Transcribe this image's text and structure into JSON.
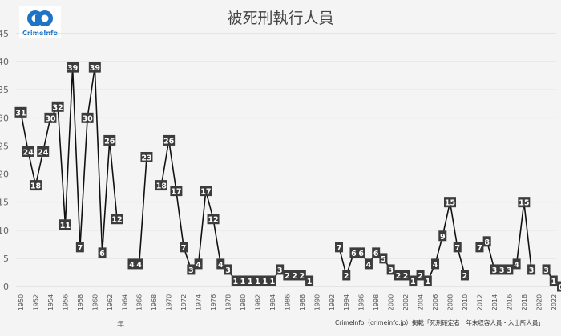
{
  "title": "被死刑執行人員",
  "logo": {
    "text": "CrimeInfo"
  },
  "credit": "CrimeInfo（crimeinfo.jp）掲載「死刑確定者　年末収容人員・入出所人員」",
  "colors": {
    "line": "#111111",
    "label_bg": "#3c3c3c",
    "label_text": "#ffffff",
    "grid": "#d4d4d4",
    "logo_blue": "#1d74c5",
    "background": "#f4f4f4"
  },
  "chart_data": {
    "type": "line",
    "title": "被死刑執行人員",
    "xlabel": "年",
    "ylabel": "",
    "ylim": [
      0,
      45
    ],
    "y_ticks": [
      0,
      5,
      10,
      15,
      20,
      25,
      30,
      35,
      40,
      45
    ],
    "xlim": [
      1950,
      2023
    ],
    "x_ticks": [
      1950,
      1952,
      1954,
      1956,
      1958,
      1960,
      1962,
      1964,
      1966,
      1968,
      1970,
      1972,
      1974,
      1976,
      1978,
      1980,
      1982,
      1984,
      1986,
      1988,
      1990,
      1992,
      1994,
      1996,
      1998,
      2000,
      2002,
      2004,
      2006,
      2008,
      2010,
      2012,
      2014,
      2016,
      2018,
      2020,
      2022
    ],
    "grid": true,
    "segments": [
      [
        [
          1950,
          31
        ],
        [
          1951,
          24
        ],
        [
          1952,
          18
        ],
        [
          1953,
          24
        ],
        [
          1954,
          30
        ],
        [
          1955,
          32
        ],
        [
          1956,
          11
        ],
        [
          1957,
          39
        ],
        [
          1958,
          7
        ],
        [
          1959,
          30
        ],
        [
          1960,
          39
        ],
        [
          1961,
          6
        ],
        [
          1962,
          26
        ],
        [
          1963,
          12
        ]
      ],
      [
        [
          1965,
          4
        ],
        [
          1966,
          4
        ],
        [
          1967,
          23
        ]
      ],
      [
        [
          1969,
          18
        ],
        [
          1970,
          26
        ],
        [
          1971,
          17
        ],
        [
          1972,
          7
        ],
        [
          1973,
          3
        ],
        [
          1974,
          4
        ],
        [
          1975,
          17
        ],
        [
          1976,
          12
        ],
        [
          1977,
          4
        ],
        [
          1978,
          3
        ],
        [
          1979,
          1
        ],
        [
          1980,
          1
        ],
        [
          1981,
          1
        ],
        [
          1982,
          1
        ],
        [
          1983,
          1
        ],
        [
          1984,
          1
        ],
        [
          1985,
          3
        ],
        [
          1986,
          2
        ],
        [
          1987,
          2
        ],
        [
          1988,
          2
        ],
        [
          1989,
          1
        ]
      ],
      [
        [
          1993,
          7
        ],
        [
          1994,
          2
        ],
        [
          1995,
          6
        ],
        [
          1996,
          6
        ],
        [
          1997,
          4
        ],
        [
          1998,
          6
        ],
        [
          1999,
          5
        ],
        [
          2000,
          3
        ],
        [
          2001,
          2
        ],
        [
          2002,
          2
        ],
        [
          2003,
          1
        ],
        [
          2004,
          2
        ],
        [
          2005,
          1
        ],
        [
          2006,
          4
        ],
        [
          2007,
          9
        ],
        [
          2008,
          15
        ],
        [
          2009,
          7
        ],
        [
          2010,
          2
        ]
      ],
      [
        [
          2012,
          7
        ],
        [
          2013,
          8
        ],
        [
          2014,
          3
        ],
        [
          2015,
          3
        ],
        [
          2016,
          3
        ],
        [
          2017,
          4
        ],
        [
          2018,
          15
        ],
        [
          2019,
          3
        ]
      ],
      [
        [
          2021,
          3
        ],
        [
          2022,
          1
        ],
        [
          2023,
          0
        ]
      ]
    ]
  }
}
